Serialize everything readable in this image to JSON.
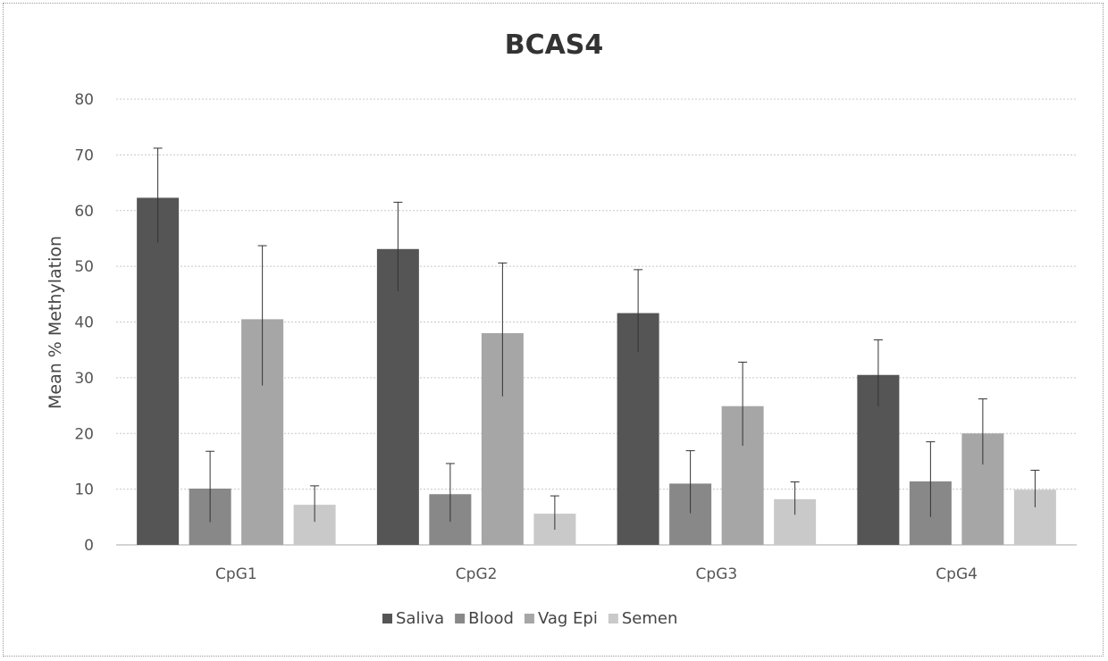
{
  "chart_data": {
    "type": "bar",
    "title": "BCAS4",
    "xlabel": "",
    "ylabel": "Mean % Methylation",
    "ylim": [
      0,
      80
    ],
    "yticks": [
      0,
      10,
      20,
      30,
      40,
      50,
      60,
      70,
      80
    ],
    "grid": true,
    "legend_position": "bottom",
    "categories": [
      "CpG1",
      "CpG2",
      "CpG3",
      "CpG4"
    ],
    "series": [
      {
        "name": "Saliva",
        "color": "#555555",
        "values": [
          62.3,
          53.1,
          41.6,
          30.5
        ],
        "error_upper": [
          71.2,
          61.5,
          49.4,
          36.8
        ]
      },
      {
        "name": "Blood",
        "color": "#888888",
        "values": [
          10.1,
          9.1,
          11.0,
          11.4
        ],
        "error_upper": [
          16.8,
          14.6,
          16.9,
          18.5
        ]
      },
      {
        "name": "Vag Epi",
        "color": "#a6a6a6",
        "values": [
          40.5,
          38.0,
          24.9,
          20.0
        ],
        "error_upper": [
          53.7,
          50.6,
          32.8,
          26.2
        ]
      },
      {
        "name": "Semen",
        "color": "#c9c9c9",
        "values": [
          7.2,
          5.6,
          8.2,
          9.9
        ],
        "error_upper": [
          10.6,
          8.8,
          11.3,
          13.4
        ]
      }
    ]
  }
}
